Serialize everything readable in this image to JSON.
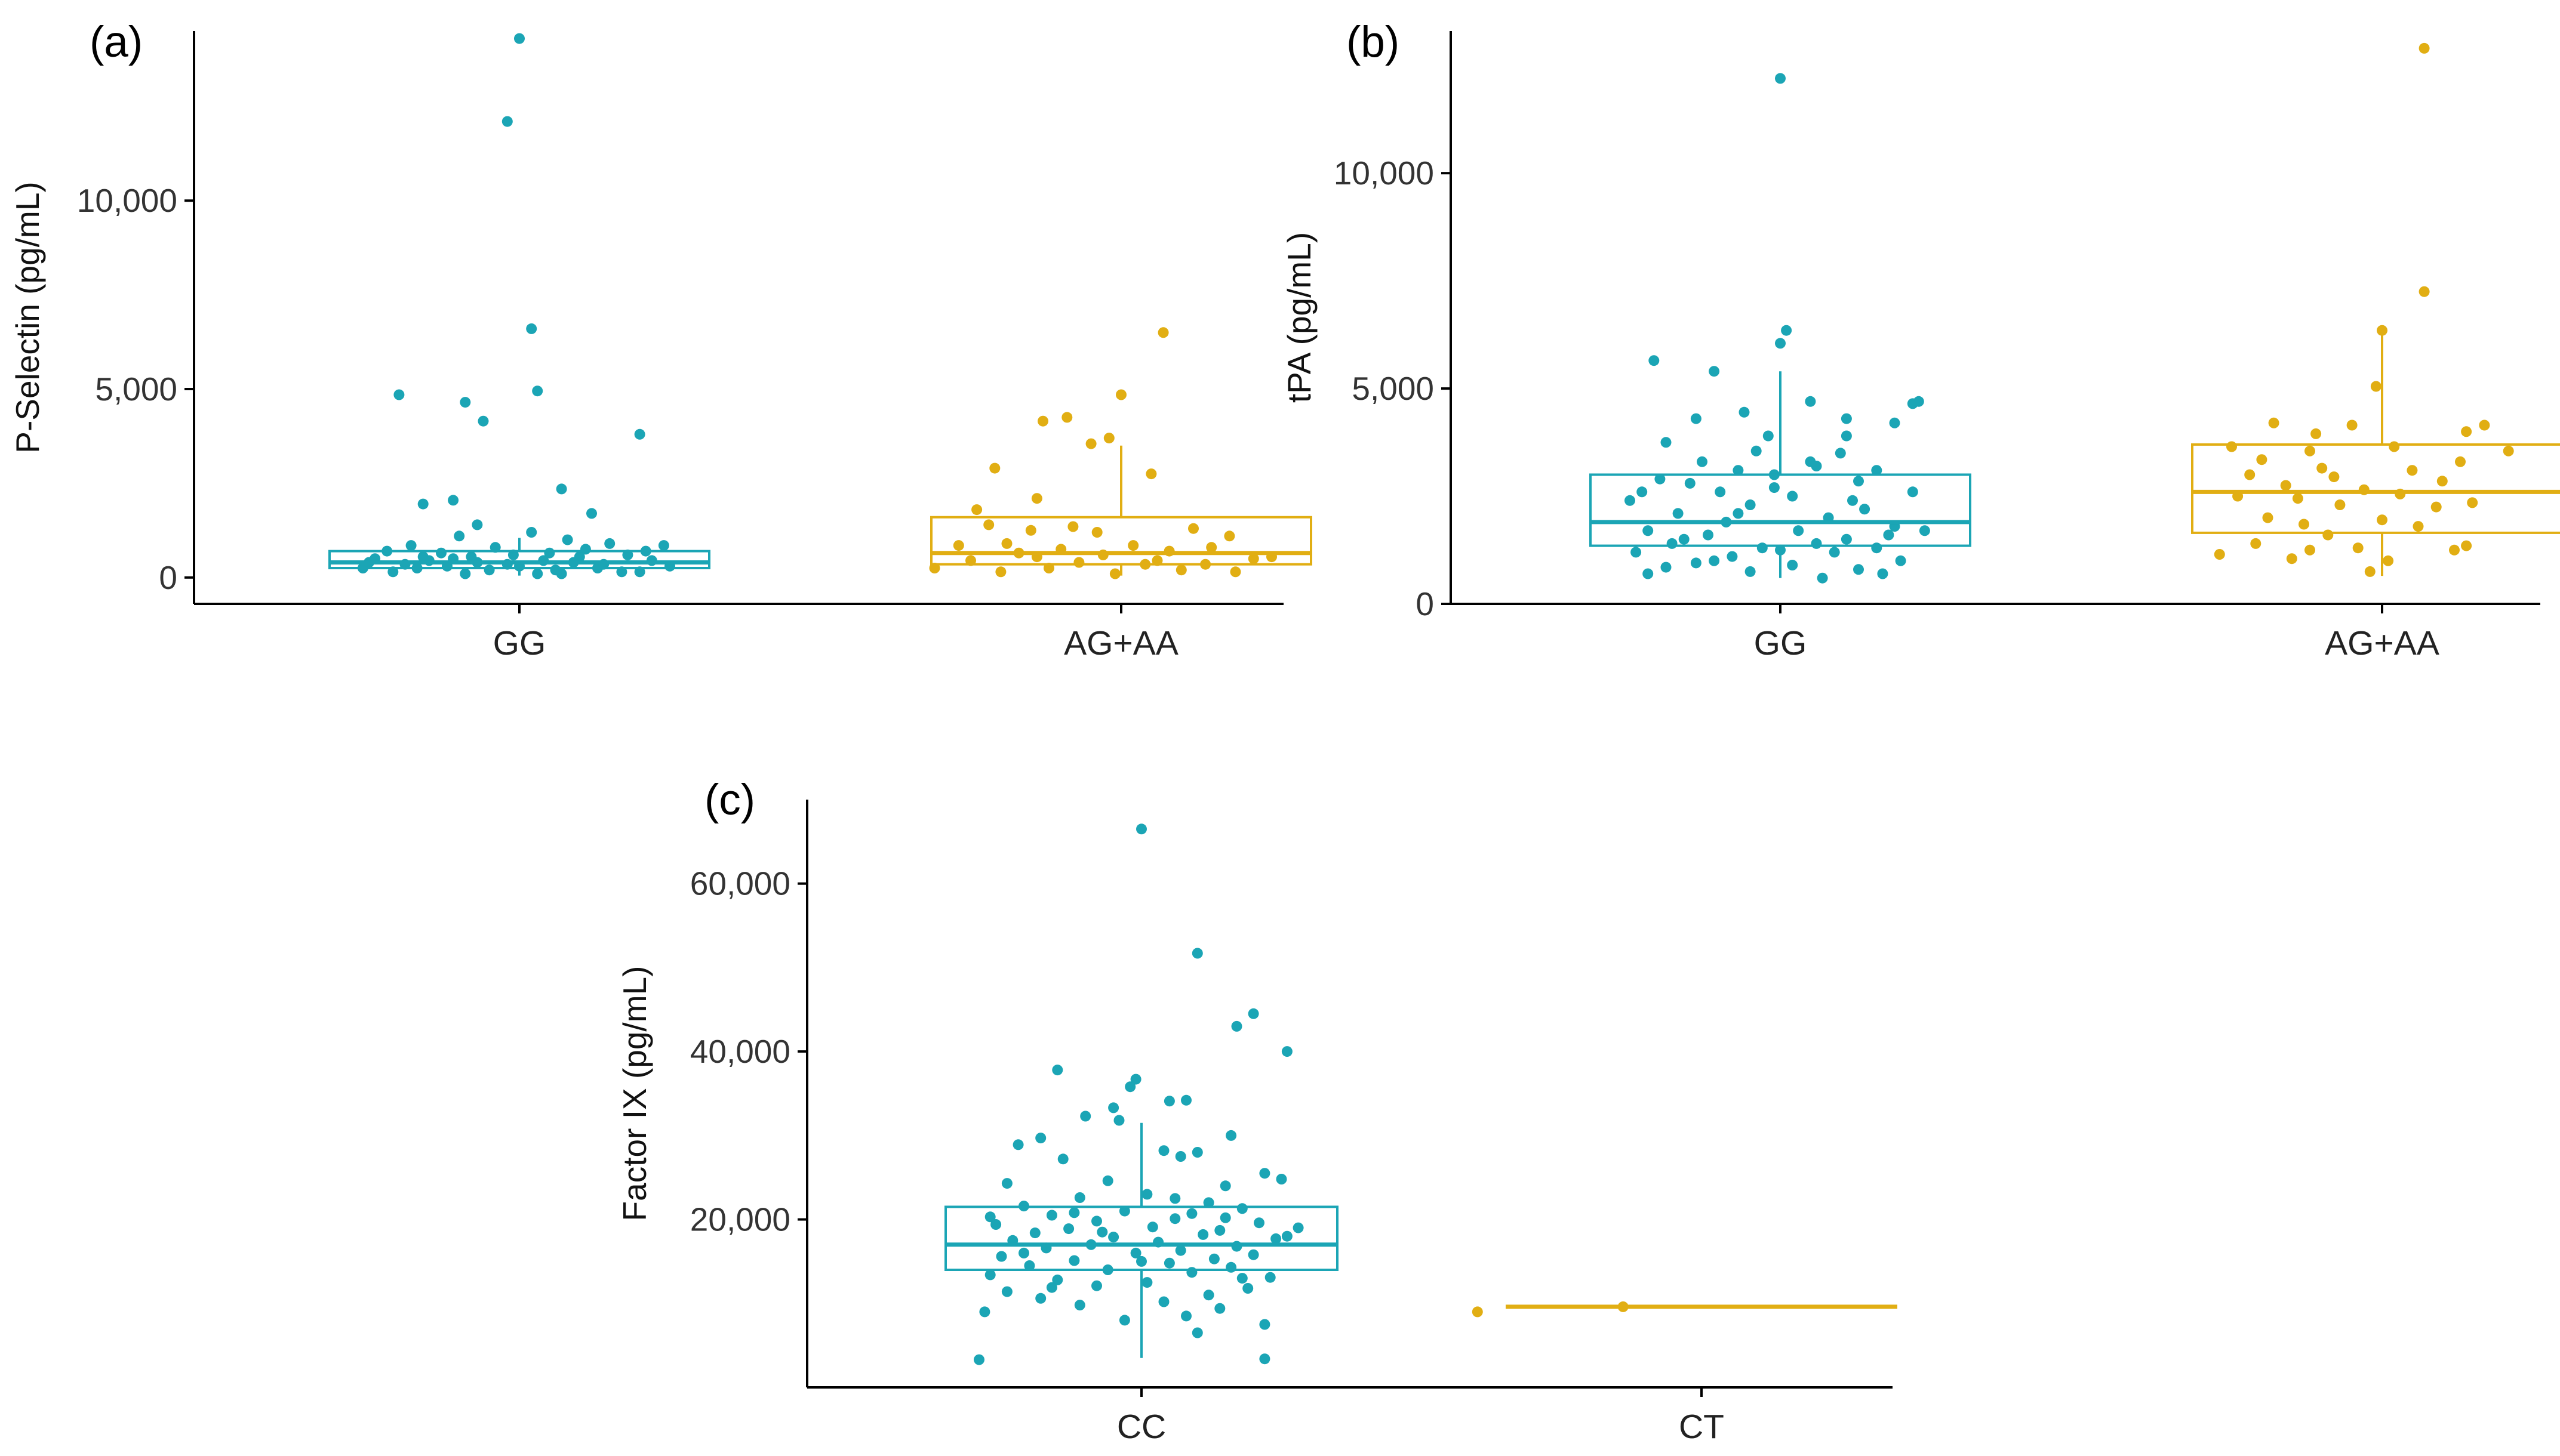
{
  "colors": {
    "group1": "#1BA5B5",
    "group2": "#E1AE13",
    "axis": "#000000"
  },
  "chart_data": [
    {
      "type": "box",
      "panel_label": "(a)",
      "ylabel": "P-Selectin (pg/mL)",
      "ylim": [
        -700,
        14500
      ],
      "yticks": [
        0,
        5000,
        10000
      ],
      "ytick_labels": [
        "0",
        "5,000",
        "10,000"
      ],
      "categories": [
        "GG",
        "AG+AA"
      ],
      "boxes": [
        {
          "category": "GG",
          "q1": 250,
          "median": 400,
          "q3": 700,
          "whisker_low": 50,
          "whisker_high": 1050
        },
        {
          "category": "AG+AA",
          "q1": 350,
          "median": 650,
          "q3": 1600,
          "whisker_low": 50,
          "whisker_high": 3500
        }
      ],
      "points": [
        [
          0.0,
          14300
        ],
        [
          -0.02,
          12100
        ],
        [
          0.02,
          6600
        ],
        [
          0.03,
          4950
        ],
        [
          -0.2,
          4850
        ],
        [
          -0.09,
          4650
        ],
        [
          -0.06,
          4150
        ],
        [
          0.2,
          3800
        ],
        [
          0.07,
          2350
        ],
        [
          -0.11,
          2050
        ],
        [
          -0.16,
          1950
        ],
        [
          0.12,
          1700
        ],
        [
          -0.07,
          1400
        ],
        [
          0.02,
          1200
        ],
        [
          -0.1,
          1100
        ],
        [
          0.08,
          1000
        ],
        [
          0.15,
          900
        ],
        [
          -0.18,
          850
        ],
        [
          0.24,
          850
        ],
        [
          -0.04,
          800
        ],
        [
          0.11,
          750
        ],
        [
          -0.22,
          700
        ],
        [
          -0.13,
          650
        ],
        [
          0.05,
          650
        ],
        [
          0.18,
          600
        ],
        [
          -0.01,
          600
        ],
        [
          -0.24,
          500
        ],
        [
          -0.15,
          450
        ],
        [
          -0.07,
          400
        ],
        [
          0.09,
          400
        ],
        [
          0.22,
          450
        ],
        [
          -0.19,
          350
        ],
        [
          -0.12,
          300
        ],
        [
          0.0,
          300
        ],
        [
          0.13,
          250
        ],
        [
          -0.26,
          250
        ],
        [
          -0.05,
          200
        ],
        [
          0.06,
          200
        ],
        [
          0.17,
          150
        ],
        [
          -0.21,
          150
        ],
        [
          -0.09,
          100
        ],
        [
          0.03,
          100
        ],
        [
          0.25,
          300
        ],
        [
          0.2,
          150
        ],
        [
          -0.02,
          350
        ],
        [
          0.1,
          550
        ],
        [
          -0.16,
          550
        ],
        [
          0.14,
          350
        ],
        [
          -0.08,
          550
        ],
        [
          0.21,
          700
        ],
        [
          -0.25,
          400
        ],
        [
          0.07,
          100
        ],
        [
          -0.17,
          250
        ],
        [
          0.04,
          450
        ],
        [
          -0.11,
          500
        ],
        [
          1.07,
          6500
        ],
        [
          1.0,
          4850
        ],
        [
          0.91,
          4250
        ],
        [
          0.87,
          4150
        ],
        [
          0.98,
          3700
        ],
        [
          0.95,
          3550
        ],
        [
          0.79,
          2900
        ],
        [
          0.86,
          2100
        ],
        [
          1.05,
          2750
        ],
        [
          0.76,
          1800
        ],
        [
          0.78,
          1400
        ],
        [
          0.92,
          1350
        ],
        [
          1.12,
          1300
        ],
        [
          0.85,
          1250
        ],
        [
          0.96,
          1200
        ],
        [
          1.18,
          1100
        ],
        [
          0.81,
          900
        ],
        [
          1.02,
          850
        ],
        [
          0.73,
          850
        ],
        [
          1.15,
          800
        ],
        [
          0.9,
          750
        ],
        [
          1.08,
          700
        ],
        [
          0.83,
          650
        ],
        [
          0.97,
          600
        ],
        [
          1.22,
          500
        ],
        [
          0.75,
          450
        ],
        [
          0.93,
          400
        ],
        [
          1.04,
          350
        ],
        [
          1.14,
          350
        ],
        [
          0.69,
          250
        ],
        [
          0.88,
          250
        ],
        [
          1.1,
          200
        ],
        [
          0.8,
          150
        ],
        [
          1.19,
          150
        ],
        [
          0.99,
          100
        ],
        [
          1.25,
          550
        ],
        [
          0.86,
          550
        ],
        [
          1.06,
          450
        ]
      ]
    },
    {
      "type": "box",
      "panel_label": "(b)",
      "ylabel": "tPA (pg/mL)",
      "ylim": [
        0,
        13300
      ],
      "yticks": [
        0,
        5000,
        10000
      ],
      "ytick_labels": [
        "0",
        "5,000",
        "10,000"
      ],
      "categories": [
        "GG",
        "AG+AA"
      ],
      "boxes": [
        {
          "category": "GG",
          "q1": 1350,
          "median": 1900,
          "q3": 3000,
          "whisker_low": 600,
          "whisker_high": 5400
        },
        {
          "category": "AG+AA",
          "q1": 1650,
          "median": 2600,
          "q3": 3700,
          "whisker_low": 650,
          "whisker_high": 6400
        }
      ],
      "points": [
        [
          0.0,
          12200
        ],
        [
          0.01,
          6350
        ],
        [
          0.0,
          6050
        ],
        [
          -0.21,
          5650
        ],
        [
          -0.11,
          5400
        ],
        [
          0.23,
          4700
        ],
        [
          0.22,
          4650
        ],
        [
          0.05,
          4700
        ],
        [
          -0.06,
          4450
        ],
        [
          -0.14,
          4300
        ],
        [
          0.11,
          4300
        ],
        [
          0.19,
          4200
        ],
        [
          -0.02,
          3900
        ],
        [
          0.11,
          3900
        ],
        [
          -0.19,
          3750
        ],
        [
          -0.04,
          3550
        ],
        [
          0.1,
          3500
        ],
        [
          -0.13,
          3300
        ],
        [
          0.06,
          3200
        ],
        [
          -0.07,
          3100
        ],
        [
          0.16,
          3100
        ],
        [
          -0.01,
          3000
        ],
        [
          -0.2,
          2900
        ],
        [
          0.13,
          2850
        ],
        [
          -0.15,
          2800
        ],
        [
          -0.1,
          2600
        ],
        [
          0.22,
          2600
        ],
        [
          0.02,
          2500
        ],
        [
          -0.25,
          2400
        ],
        [
          -0.05,
          2300
        ],
        [
          0.14,
          2200
        ],
        [
          -0.17,
          2100
        ],
        [
          0.08,
          2000
        ],
        [
          -0.09,
          1900
        ],
        [
          0.19,
          1800
        ],
        [
          -0.22,
          1700
        ],
        [
          0.03,
          1700
        ],
        [
          -0.12,
          1600
        ],
        [
          0.11,
          1500
        ],
        [
          -0.18,
          1400
        ],
        [
          0.06,
          1400
        ],
        [
          -0.03,
          1300
        ],
        [
          0.16,
          1300
        ],
        [
          -0.24,
          1200
        ],
        [
          0.09,
          1200
        ],
        [
          -0.08,
          1100
        ],
        [
          0.2,
          1000
        ],
        [
          -0.14,
          950
        ],
        [
          0.02,
          900
        ],
        [
          -0.19,
          850
        ],
        [
          0.13,
          800
        ],
        [
          -0.05,
          750
        ],
        [
          0.17,
          700
        ],
        [
          -0.22,
          700
        ],
        [
          0.07,
          600
        ],
        [
          -0.11,
          1000
        ],
        [
          0.0,
          1250
        ],
        [
          -0.16,
          1500
        ],
        [
          0.24,
          1700
        ],
        [
          -0.01,
          2700
        ],
        [
          0.05,
          3300
        ],
        [
          -0.07,
          2100
        ],
        [
          0.12,
          2400
        ],
        [
          -0.23,
          2600
        ],
        [
          0.18,
          1600
        ],
        [
          1.07,
          12900
        ],
        [
          1.07,
          7250
        ],
        [
          1.0,
          6350
        ],
        [
          0.99,
          5050
        ],
        [
          0.82,
          4200
        ],
        [
          0.95,
          4150
        ],
        [
          1.17,
          4150
        ],
        [
          1.14,
          4000
        ],
        [
          0.89,
          3950
        ],
        [
          0.75,
          3650
        ],
        [
          0.88,
          3550
        ],
        [
          1.02,
          3650
        ],
        [
          1.21,
          3550
        ],
        [
          0.8,
          3350
        ],
        [
          1.13,
          3300
        ],
        [
          0.9,
          3150
        ],
        [
          1.05,
          3100
        ],
        [
          0.78,
          3000
        ],
        [
          0.92,
          2950
        ],
        [
          1.1,
          2850
        ],
        [
          0.84,
          2750
        ],
        [
          0.97,
          2650
        ],
        [
          1.03,
          2550
        ],
        [
          0.76,
          2500
        ],
        [
          0.86,
          2450
        ],
        [
          1.15,
          2350
        ],
        [
          0.93,
          2300
        ],
        [
          1.09,
          2250
        ],
        [
          0.81,
          2000
        ],
        [
          1.0,
          1950
        ],
        [
          0.87,
          1850
        ],
        [
          1.06,
          1800
        ],
        [
          0.91,
          1600
        ],
        [
          0.79,
          1400
        ],
        [
          1.14,
          1350
        ],
        [
          0.96,
          1300
        ],
        [
          0.73,
          1150
        ],
        [
          0.85,
          1050
        ],
        [
          1.01,
          1000
        ],
        [
          0.98,
          750
        ],
        [
          0.88,
          1250
        ],
        [
          1.12,
          1250
        ]
      ]
    },
    {
      "type": "box",
      "panel_label": "(c)",
      "ylabel": "Factor IX (pg/mL)",
      "ylim": [
        0,
        70000
      ],
      "yticks": [
        20000,
        40000,
        60000
      ],
      "ytick_labels": [
        "20,000",
        "40,000",
        "60,000"
      ],
      "categories": [
        "CC",
        "CT"
      ],
      "boxes": [
        {
          "category": "CC",
          "q1": 14000,
          "median": 17000,
          "q3": 21500,
          "whisker_low": 3500,
          "whisker_high": 31500
        },
        {
          "category": "CT",
          "q1": 9600,
          "median": 9600,
          "q3": 9600,
          "whisker_low": 9600,
          "whisker_high": 9600
        }
      ],
      "points": [
        [
          0.0,
          66500
        ],
        [
          0.1,
          51700
        ],
        [
          0.2,
          44500
        ],
        [
          0.17,
          43000
        ],
        [
          0.26,
          40000
        ],
        [
          -0.15,
          37800
        ],
        [
          -0.01,
          36700
        ],
        [
          -0.02,
          35800
        ],
        [
          0.05,
          34100
        ],
        [
          0.08,
          34200
        ],
        [
          -0.05,
          33300
        ],
        [
          -0.1,
          32300
        ],
        [
          -0.04,
          31800
        ],
        [
          0.16,
          30000
        ],
        [
          -0.18,
          29700
        ],
        [
          -0.22,
          28900
        ],
        [
          0.04,
          28200
        ],
        [
          0.1,
          28000
        ],
        [
          0.07,
          27500
        ],
        [
          -0.14,
          27200
        ],
        [
          0.22,
          25500
        ],
        [
          0.25,
          24800
        ],
        [
          -0.06,
          24600
        ],
        [
          0.15,
          24000
        ],
        [
          -0.24,
          24300
        ],
        [
          0.01,
          23000
        ],
        [
          -0.11,
          22600
        ],
        [
          0.12,
          22000
        ],
        [
          -0.21,
          21600
        ],
        [
          0.18,
          21300
        ],
        [
          -0.03,
          21000
        ],
        [
          0.09,
          20700
        ],
        [
          -0.16,
          20500
        ],
        [
          0.06,
          20100
        ],
        [
          -0.08,
          19800
        ],
        [
          0.21,
          19600
        ],
        [
          -0.26,
          19400
        ],
        [
          0.02,
          19100
        ],
        [
          -0.13,
          18900
        ],
        [
          0.14,
          18700
        ],
        [
          -0.19,
          18400
        ],
        [
          0.11,
          18200
        ],
        [
          -0.05,
          17900
        ],
        [
          0.24,
          17700
        ],
        [
          -0.23,
          17500
        ],
        [
          0.03,
          17300
        ],
        [
          -0.09,
          17000
        ],
        [
          0.17,
          16800
        ],
        [
          -0.17,
          16600
        ],
        [
          0.07,
          16300
        ],
        [
          -0.01,
          16000
        ],
        [
          0.2,
          15800
        ],
        [
          -0.25,
          15600
        ],
        [
          0.13,
          15300
        ],
        [
          -0.12,
          15100
        ],
        [
          0.05,
          14800
        ],
        [
          -0.2,
          14500
        ],
        [
          0.16,
          14300
        ],
        [
          -0.06,
          14000
        ],
        [
          0.09,
          13700
        ],
        [
          -0.27,
          13400
        ],
        [
          0.23,
          13100
        ],
        [
          -0.15,
          12800
        ],
        [
          0.01,
          12500
        ],
        [
          -0.08,
          12100
        ],
        [
          0.19,
          11800
        ],
        [
          -0.24,
          11400
        ],
        [
          0.12,
          11000
        ],
        [
          -0.18,
          10600
        ],
        [
          0.04,
          10200
        ],
        [
          -0.11,
          9800
        ],
        [
          0.14,
          9400
        ],
        [
          -0.28,
          9000
        ],
        [
          0.08,
          8500
        ],
        [
          -0.03,
          8000
        ],
        [
          0.22,
          7500
        ],
        [
          0.1,
          6500
        ],
        [
          -0.29,
          3300
        ],
        [
          0.22,
          3400
        ],
        [
          -0.07,
          18500
        ],
        [
          0.15,
          20200
        ],
        [
          -0.21,
          16000
        ],
        [
          0.26,
          18000
        ],
        [
          -0.12,
          20800
        ],
        [
          0.0,
          15000
        ],
        [
          0.18,
          13000
        ],
        [
          -0.16,
          11900
        ],
        [
          0.06,
          22500
        ],
        [
          -0.27,
          20300
        ],
        [
          0.28,
          19000
        ],
        [
          0.6,
          9000
        ],
        [
          0.86,
          9600
        ]
      ]
    }
  ]
}
